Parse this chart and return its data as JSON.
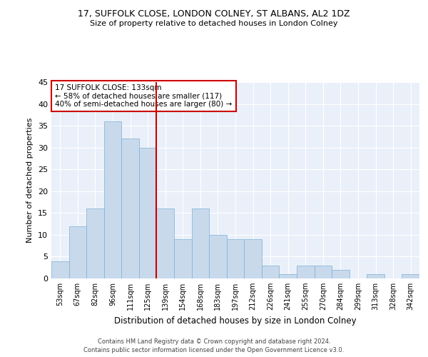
{
  "title": "17, SUFFOLK CLOSE, LONDON COLNEY, ST ALBANS, AL2 1DZ",
  "subtitle": "Size of property relative to detached houses in London Colney",
  "xlabel": "Distribution of detached houses by size in London Colney",
  "ylabel": "Number of detached properties",
  "categories": [
    "53sqm",
    "67sqm",
    "82sqm",
    "96sqm",
    "111sqm",
    "125sqm",
    "139sqm",
    "154sqm",
    "168sqm",
    "183sqm",
    "197sqm",
    "212sqm",
    "226sqm",
    "241sqm",
    "255sqm",
    "270sqm",
    "284sqm",
    "299sqm",
    "313sqm",
    "328sqm",
    "342sqm"
  ],
  "values": [
    4,
    12,
    16,
    36,
    32,
    30,
    16,
    9,
    16,
    10,
    9,
    9,
    3,
    1,
    3,
    3,
    2,
    0,
    1,
    0,
    1
  ],
  "bar_color": "#c9d9ec",
  "bar_edge_color": "#7bafd4",
  "vline_x": 5.5,
  "vline_color": "#cc0000",
  "annotation_text": "17 SUFFOLK CLOSE: 133sqm\n← 58% of detached houses are smaller (117)\n40% of semi-detached houses are larger (80) →",
  "annotation_box_color": "#ffffff",
  "annotation_box_edge": "#cc0000",
  "ylim": [
    0,
    45
  ],
  "yticks": [
    0,
    5,
    10,
    15,
    20,
    25,
    30,
    35,
    40,
    45
  ],
  "background_color": "#eaf0f9",
  "grid_color": "#ffffff",
  "fig_background": "#ffffff",
  "footer_line1": "Contains HM Land Registry data © Crown copyright and database right 2024.",
  "footer_line2": "Contains public sector information licensed under the Open Government Licence v3.0."
}
